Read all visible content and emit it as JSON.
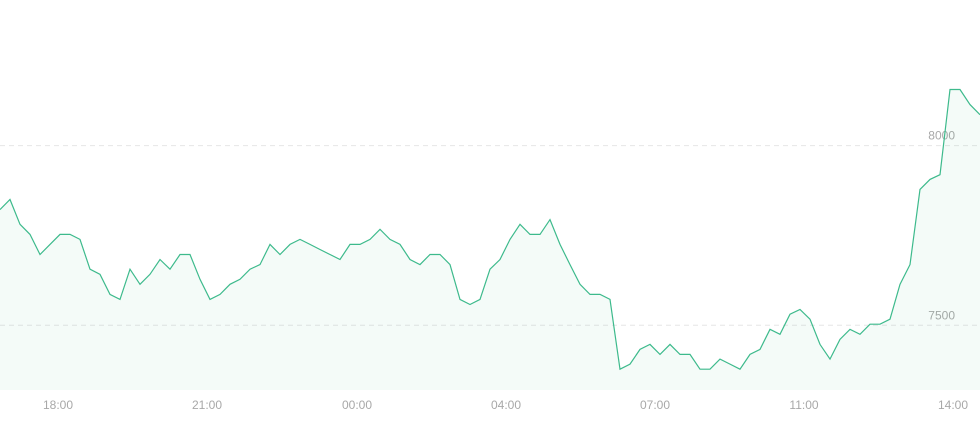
{
  "chart_data": {
    "type": "line",
    "series": [
      {
        "color": "#3dba8c",
        "values": [
          7822,
          7850,
          7781,
          7753,
          7697,
          7725,
          7753,
          7753,
          7739,
          7656,
          7642,
          7586,
          7572,
          7656,
          7614,
          7642,
          7683,
          7656,
          7697,
          7697,
          7628,
          7572,
          7586,
          7614,
          7628,
          7656,
          7669,
          7725,
          7697,
          7725,
          7739,
          7725,
          7711,
          7697,
          7683,
          7725,
          7725,
          7739,
          7767,
          7739,
          7725,
          7683,
          7669,
          7697,
          7697,
          7669,
          7572,
          7558,
          7572,
          7656,
          7683,
          7739,
          7781,
          7753,
          7753,
          7794,
          7725,
          7669,
          7614,
          7586,
          7586,
          7572,
          7378,
          7392,
          7433,
          7447,
          7419,
          7447,
          7419,
          7419,
          7378,
          7378,
          7406,
          7392,
          7378,
          7419,
          7433,
          7489,
          7475,
          7531,
          7544,
          7517,
          7447,
          7406,
          7461,
          7489,
          7475,
          7503,
          7503,
          7517,
          7614,
          7669,
          7878,
          7906,
          7919,
          8156,
          8156,
          8114,
          8086
        ]
      }
    ],
    "area": true,
    "xlim": [
      0,
      98
    ],
    "xticks": [
      {
        "value": 5.8,
        "label": "18:00"
      },
      {
        "value": 20.7,
        "label": "21:00"
      },
      {
        "value": 35.7,
        "label": "00:00"
      },
      {
        "value": 50.6,
        "label": "04:00"
      },
      {
        "value": 65.5,
        "label": "07:00"
      },
      {
        "value": 80.4,
        "label": "11:00"
      },
      {
        "value": 95.3,
        "label": "14:00"
      }
    ],
    "ylim": [
      7320,
      8405
    ],
    "yticks": [
      7500,
      8000
    ],
    "grid": true
  }
}
